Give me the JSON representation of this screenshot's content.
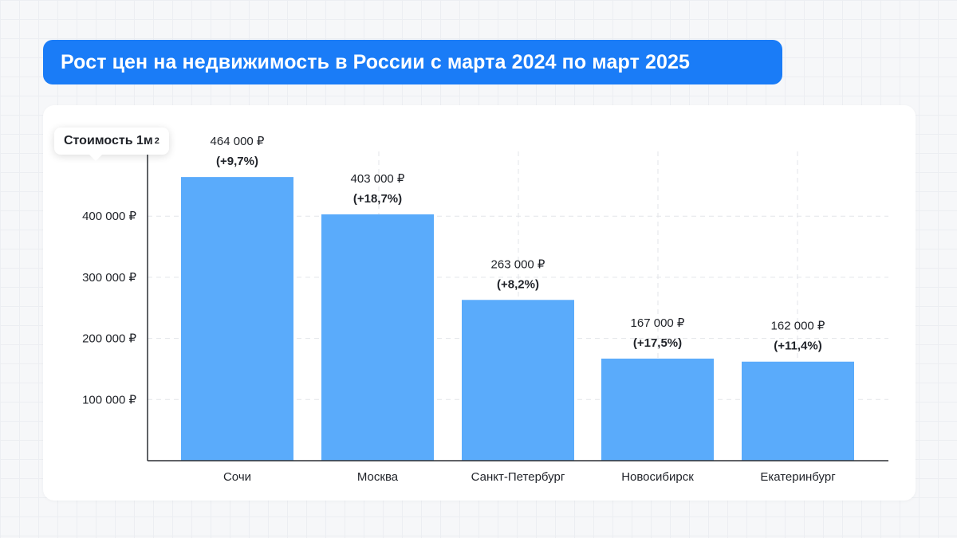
{
  "header": {
    "title": "Рост цен на недвижимость в России с марта 2024 по март 2025"
  },
  "chart_data": {
    "type": "bar",
    "title": "Рост цен на недвижимость в России с марта 2024 по март 2025",
    "ylabel": "Стоимость 1м",
    "ylabel_sup": "2",
    "xlabel": "",
    "categories": [
      "Сочи",
      "Москва",
      "Санкт-Петербург",
      "Новосибирск",
      "Екатеринбург"
    ],
    "values": [
      464000,
      403000,
      263000,
      167000,
      162000
    ],
    "value_labels": [
      "464 000 ₽",
      "403 000 ₽",
      "263 000 ₽",
      "167 000 ₽",
      "162 000 ₽"
    ],
    "change_labels": [
      "(+9,7%)",
      "(+18,7%)",
      "(+8,2%)",
      "(+17,5%)",
      "(+11,4%)"
    ],
    "y_ticks": [
      100000,
      200000,
      300000,
      400000
    ],
    "y_tick_labels": [
      "100 000 ₽",
      "200 000 ₽",
      "300 000 ₽",
      "400 000 ₽"
    ],
    "ylim": [
      0,
      470000
    ],
    "grid": true,
    "bar_color": "#5aabfb",
    "accent_color": "#1a7cf7"
  }
}
